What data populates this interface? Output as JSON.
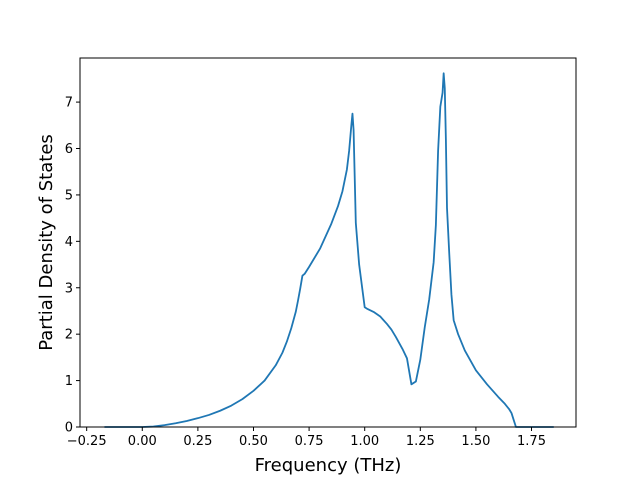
{
  "chart_data": {
    "type": "line",
    "title": "",
    "xlabel": "Frequency (THz)",
    "ylabel": "Partial Density of States",
    "xlim": [
      -0.28,
      1.95
    ],
    "ylim": [
      0,
      7.95
    ],
    "xticks": [
      -0.25,
      0.0,
      0.25,
      0.5,
      0.75,
      1.0,
      1.25,
      1.5,
      1.75
    ],
    "xtick_labels": [
      "−0.25",
      "0.00",
      "0.25",
      "0.50",
      "0.75",
      "1.00",
      "1.25",
      "1.50",
      "1.75"
    ],
    "yticks": [
      0,
      1,
      2,
      3,
      4,
      5,
      6,
      7
    ],
    "ytick_labels": [
      "0",
      "1",
      "2",
      "3",
      "4",
      "5",
      "6",
      "7"
    ],
    "grid": false,
    "legend": "none",
    "series": [
      {
        "color": "#1f77b4",
        "x": [
          -0.17,
          -0.1,
          0.0,
          0.05,
          0.1,
          0.15,
          0.2,
          0.25,
          0.3,
          0.35,
          0.4,
          0.45,
          0.5,
          0.55,
          0.6,
          0.63,
          0.65,
          0.67,
          0.69,
          0.7,
          0.71,
          0.72,
          0.73,
          0.75,
          0.8,
          0.85,
          0.88,
          0.9,
          0.92,
          0.93,
          0.94,
          0.945,
          0.95,
          0.96,
          0.975,
          1.0,
          1.01,
          1.04,
          1.07,
          1.1,
          1.12,
          1.14,
          1.17,
          1.19,
          1.21,
          1.23,
          1.25,
          1.27,
          1.29,
          1.31,
          1.32,
          1.33,
          1.34,
          1.35,
          1.355,
          1.36,
          1.365,
          1.37,
          1.38,
          1.39,
          1.4,
          1.42,
          1.45,
          1.5,
          1.55,
          1.6,
          1.63,
          1.65,
          1.66,
          1.67,
          1.68,
          1.7,
          1.75,
          1.8,
          1.85
        ],
        "y": [
          0.0,
          0.0,
          0.0,
          0.01,
          0.04,
          0.08,
          0.13,
          0.19,
          0.26,
          0.35,
          0.46,
          0.6,
          0.78,
          1.0,
          1.33,
          1.6,
          1.84,
          2.13,
          2.48,
          2.72,
          2.98,
          3.26,
          3.3,
          3.45,
          3.85,
          4.38,
          4.76,
          5.08,
          5.55,
          5.95,
          6.5,
          6.75,
          6.4,
          4.4,
          3.5,
          2.58,
          2.55,
          2.48,
          2.38,
          2.22,
          2.1,
          1.94,
          1.68,
          1.48,
          0.92,
          0.98,
          1.45,
          2.15,
          2.75,
          3.55,
          4.35,
          5.95,
          6.9,
          7.2,
          7.62,
          7.3,
          6.2,
          4.72,
          3.75,
          2.85,
          2.3,
          2.0,
          1.65,
          1.22,
          0.92,
          0.65,
          0.5,
          0.38,
          0.3,
          0.15,
          0.0,
          0.0,
          0.0,
          0.0,
          0.0
        ]
      }
    ]
  }
}
